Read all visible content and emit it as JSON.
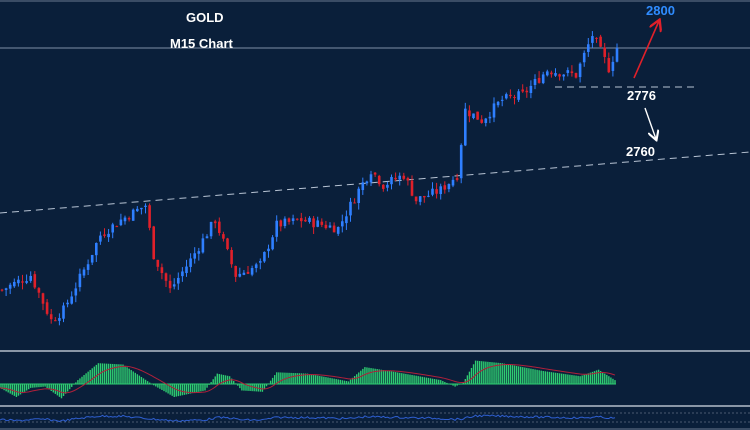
{
  "chart_data": {
    "type": "candlestick",
    "symbol": "GOLD",
    "timeframe": "M15 Chart",
    "price_path": [
      [
        0,
        2731.9
      ],
      [
        7,
        2735.1
      ],
      [
        12,
        2725.3
      ],
      [
        15,
        2727.5
      ],
      [
        20,
        2736.2
      ],
      [
        24,
        2743.8
      ],
      [
        29,
        2747.1
      ],
      [
        35,
        2750.3
      ],
      [
        37,
        2739.5
      ],
      [
        41,
        2731.9
      ],
      [
        46,
        2738.4
      ],
      [
        52,
        2747.1
      ],
      [
        57,
        2735.1
      ],
      [
        63,
        2737.3
      ],
      [
        67,
        2746.0
      ],
      [
        73,
        2747.1
      ],
      [
        82,
        2745.3
      ],
      [
        87,
        2753.6
      ],
      [
        90,
        2758.0
      ],
      [
        93,
        2754.7
      ],
      [
        98,
        2756.9
      ],
      [
        101,
        2751.4
      ],
      [
        107,
        2753.6
      ],
      [
        111,
        2756.9
      ],
      [
        113,
        2771.0
      ],
      [
        117,
        2768.8
      ],
      [
        122,
        2773.2
      ],
      [
        127,
        2774.3
      ],
      [
        133,
        2779.7
      ],
      [
        140,
        2778.6
      ],
      [
        144,
        2787.3
      ],
      [
        148,
        2780.1
      ],
      [
        150,
        2784.5
      ]
    ],
    "levels": [
      {
        "label": "2800",
        "value": 2800,
        "color": "#2f8cff",
        "direction": "up",
        "arrow_color": "#e0202a"
      },
      {
        "label": "2776",
        "value": 2776,
        "style": "dashed"
      },
      {
        "label": "2760",
        "value": 2760,
        "style": "dashed-trendline",
        "direction": "down",
        "arrow_color": "#ffffff"
      }
    ],
    "current_price": 2784.5,
    "colors": {
      "bull": "#2f7fff",
      "bear": "#e0202a",
      "macd_hist": "#2ecc71",
      "macd_signal": "#b0203a",
      "rsi": "#2f5fd0",
      "background": "#0a1f3a"
    },
    "macd_path": [
      [
        0,
        -0.3
      ],
      [
        8,
        -1.0
      ],
      [
        15,
        -0.3
      ],
      [
        22,
        -0.2
      ],
      [
        30,
        -1.1
      ],
      [
        38,
        0.3
      ],
      [
        48,
        1.6
      ],
      [
        60,
        1.5
      ],
      [
        75,
        -0.1
      ],
      [
        85,
        -1.0
      ],
      [
        100,
        -0.5
      ],
      [
        106,
        0.8
      ],
      [
        112,
        0.6
      ],
      [
        118,
        -0.5
      ],
      [
        128,
        -0.6
      ],
      [
        135,
        0.9
      ],
      [
        150,
        0.8
      ],
      [
        170,
        0.2
      ],
      [
        178,
        1.3
      ],
      [
        190,
        1.0
      ],
      [
        215,
        0.3
      ],
      [
        222,
        -0.2
      ],
      [
        226,
        0.1
      ],
      [
        232,
        1.8
      ],
      [
        245,
        1.6
      ],
      [
        265,
        1.0
      ],
      [
        283,
        0.6
      ],
      [
        292,
        1.1
      ],
      [
        300,
        0.3
      ]
    ]
  }
}
